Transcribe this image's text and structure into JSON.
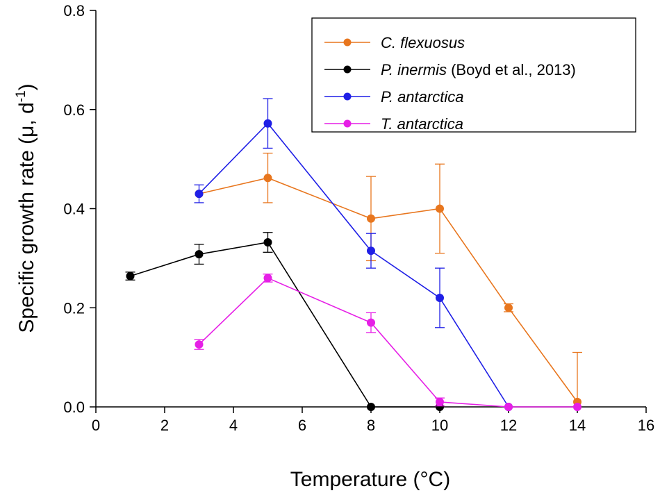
{
  "chart_data": {
    "type": "line",
    "title": "",
    "xlabel": "Temperature (°C)",
    "ylabel": {
      "prefix": "Specific growth rate (μ, d",
      "superscript": "-1",
      "suffix": ")"
    },
    "xlim": [
      0,
      16
    ],
    "ylim": [
      0,
      0.8
    ],
    "xticks": [
      0,
      2,
      4,
      6,
      8,
      10,
      12,
      14,
      16
    ],
    "xtick_labels": [
      "0",
      "2",
      "4",
      "6",
      "8",
      "10",
      "12",
      "14",
      "16"
    ],
    "yticks": [
      0,
      0.2,
      0.4,
      0.6,
      0.8
    ],
    "ytick_labels": [
      "0.0",
      "0.2",
      "0.4",
      "0.6",
      "0.8"
    ],
    "grid": false,
    "legend_position": "top-right",
    "series": [
      {
        "name": "C. flexuosus",
        "name_italic": "C. flexuosus",
        "name_suffix": "",
        "color": "#E8761E",
        "x": [
          3,
          5,
          8,
          10,
          12,
          14
        ],
        "y": [
          0.43,
          0.462,
          0.38,
          0.4,
          0.2,
          0.01
        ],
        "err": [
          0.0,
          0.05,
          0.085,
          0.09,
          0.008,
          0.1
        ],
        "err_top_only": [
          false,
          false,
          false,
          false,
          false,
          true
        ]
      },
      {
        "name": "P. inermis (Boyd et al., 2013)",
        "name_italic": "P. inermis",
        "name_suffix": " (Boyd et al., 2013)",
        "color": "#000000",
        "x": [
          1,
          3,
          5,
          8,
          10
        ],
        "y": [
          0.264,
          0.308,
          0.332,
          0.0,
          0.0
        ],
        "err": [
          0.008,
          0.02,
          0.02,
          0.0,
          0.0
        ],
        "err_top_only": [
          false,
          false,
          false,
          false,
          false
        ]
      },
      {
        "name": "P. antarctica",
        "name_italic": "P. antarctica",
        "name_suffix": "",
        "color": "#1F1FE6",
        "x": [
          3,
          5,
          8,
          10,
          12
        ],
        "y": [
          0.43,
          0.572,
          0.315,
          0.22,
          0.0
        ],
        "err": [
          0.018,
          0.05,
          0.035,
          0.06,
          0.0
        ],
        "err_top_only": [
          false,
          false,
          false,
          false,
          false
        ]
      },
      {
        "name": "T. antarctica",
        "name_italic": "T. antarctica",
        "name_suffix": "",
        "color": "#E61FE6",
        "x": [
          3,
          5,
          8,
          10,
          12,
          14
        ],
        "y": [
          0.126,
          0.26,
          0.17,
          0.01,
          0.0,
          0.0
        ],
        "err": [
          0.01,
          0.008,
          0.02,
          0.008,
          0.0,
          0.0
        ],
        "err_top_only": [
          false,
          false,
          false,
          false,
          false,
          false
        ]
      }
    ]
  }
}
